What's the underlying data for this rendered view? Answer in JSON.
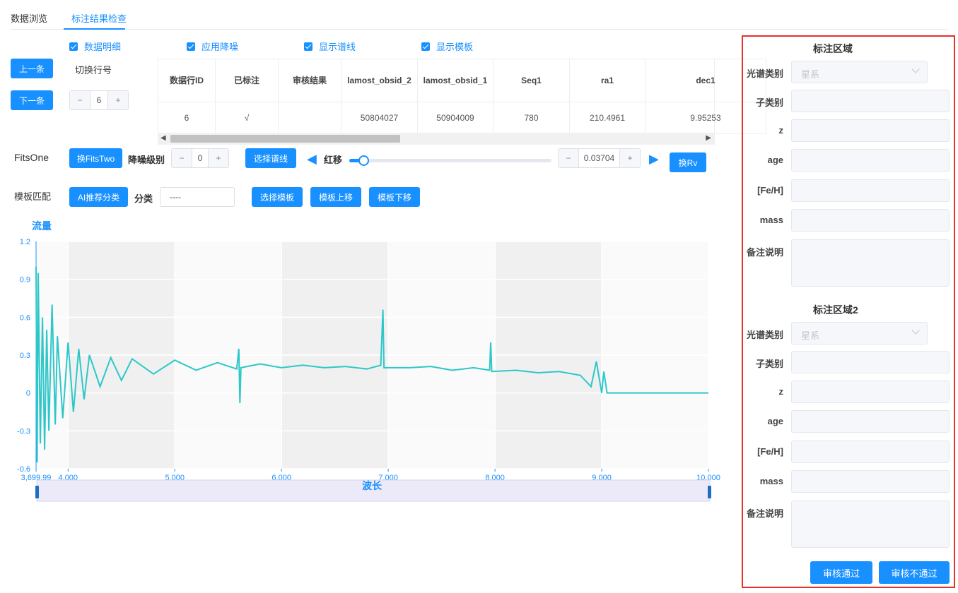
{
  "tabs": [
    "数据浏览",
    "标注结果检查"
  ],
  "checkboxes": [
    "数据明细",
    "应用降噪",
    "显示谱线",
    "显示模板"
  ],
  "nav": {
    "prev": "上一条",
    "next": "下一条",
    "row_switch_label": "切换行号",
    "row_number": 6
  },
  "table": {
    "headers": [
      "数据行ID",
      "已标注",
      "审核结果",
      "lamost_obsid_2",
      "lamost_obsid_1",
      "Seq1",
      "ra1",
      "dec1"
    ],
    "rows": [
      [
        6,
        "√",
        null,
        50804027,
        50904009,
        780,
        210.4961,
        9.95253
      ]
    ]
  },
  "toolbar1": {
    "label": "FitsOne",
    "switch_button": "换FitsTwo",
    "denoise_label": "降噪级别",
    "denoise_level": 0,
    "select_line_button": "选择谱线",
    "redshift_label": "红移",
    "redshift": 0.03704,
    "rv_button": "换Rv"
  },
  "toolbar2": {
    "label": "模板匹配",
    "ai_button": "AI推荐分类",
    "class_label": "分类",
    "class_value": "----",
    "buttons": [
      "选择模板",
      "模板上移",
      "模板下移"
    ]
  },
  "chart_data": {
    "type": "line",
    "y_label": "流量",
    "x_label": "波长",
    "color": "#2ec7c9",
    "x": [
      3700,
      3710,
      3720,
      3740,
      3760,
      3780,
      3800,
      3820,
      3850,
      3880,
      3900,
      3950,
      4000,
      4050,
      4100,
      4150,
      4200,
      4300,
      4400,
      4500,
      4600,
      4800,
      5000,
      5200,
      5400,
      5580,
      5600,
      5610,
      5620,
      5800,
      6000,
      6200,
      6400,
      6600,
      6800,
      6930,
      6950,
      6960,
      7200,
      7400,
      7600,
      7800,
      7950,
      7960,
      7970,
      8200,
      8400,
      8600,
      8800,
      8900,
      8950,
      9000,
      9020,
      9050,
      10000
    ],
    "values": [
      1.0,
      -0.55,
      0.95,
      -0.4,
      0.6,
      -0.45,
      0.5,
      -0.3,
      0.7,
      -0.25,
      0.45,
      -0.2,
      0.4,
      -0.15,
      0.35,
      -0.05,
      0.3,
      0.05,
      0.28,
      0.1,
      0.27,
      0.15,
      0.26,
      0.18,
      0.24,
      0.19,
      0.35,
      -0.08,
      0.2,
      0.23,
      0.2,
      0.22,
      0.2,
      0.21,
      0.19,
      0.22,
      0.66,
      0.2,
      0.2,
      0.21,
      0.18,
      0.2,
      0.18,
      0.4,
      0.17,
      0.18,
      0.16,
      0.17,
      0.14,
      0.05,
      0.25,
      0.0,
      0.17,
      0.0,
      0.0
    ],
    "xlim": [
      3699.99,
      10000
    ],
    "ylim": [
      -0.6,
      1.2
    ],
    "xticks": [
      {
        "value": 3699.99,
        "label": "3,699.99"
      },
      {
        "value": 4000,
        "label": "4,000"
      },
      {
        "value": 5000,
        "label": "5,000"
      },
      {
        "value": 6000,
        "label": "6,000"
      },
      {
        "value": 7000,
        "label": "7,000"
      },
      {
        "value": 8000,
        "label": "8,000"
      },
      {
        "value": 9000,
        "label": "9,000"
      },
      {
        "value": 10000,
        "label": "10,000"
      }
    ],
    "yticks": [
      -0.6,
      -0.3,
      0,
      0.3,
      0.6,
      0.9,
      1.2
    ],
    "grid": true
  },
  "panels": [
    {
      "title": "标注区域",
      "fields": [
        {
          "label": "光谱类别",
          "placeholder": "星系"
        },
        {
          "label": "子类别"
        },
        {
          "label": "z"
        },
        {
          "label": "age"
        },
        {
          "label": "[Fe/H]"
        },
        {
          "label": "mass"
        },
        {
          "label": "备注说明"
        }
      ]
    },
    {
      "title": "标注区域2",
      "fields": [
        {
          "label": "光谱类别",
          "placeholder": "星系"
        },
        {
          "label": "子类别"
        },
        {
          "label": "z"
        },
        {
          "label": "age"
        },
        {
          "label": "[Fe/H]"
        },
        {
          "label": "mass"
        },
        {
          "label": "备注说明"
        }
      ]
    }
  ],
  "actions": [
    "审核通过",
    "审核不通过"
  ]
}
